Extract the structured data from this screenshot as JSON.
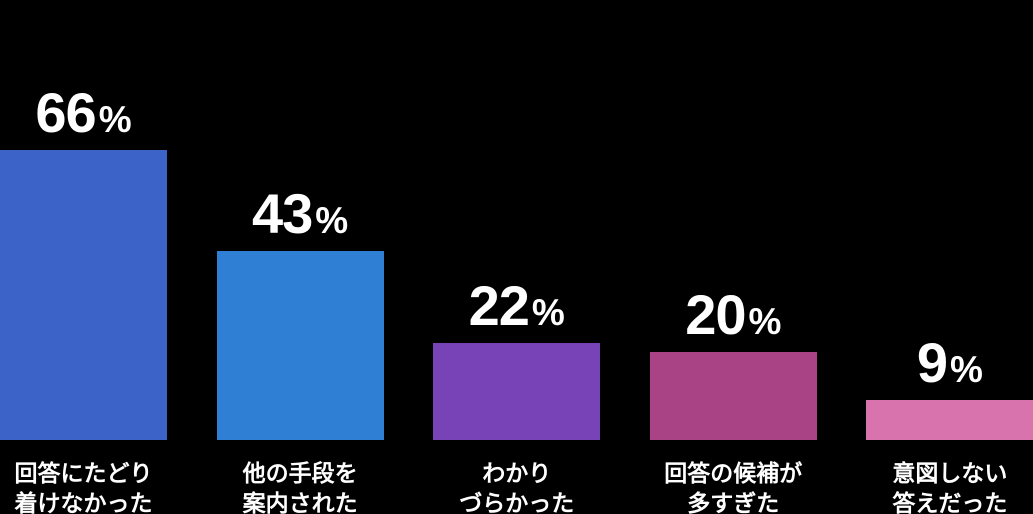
{
  "chart_data": {
    "type": "bar",
    "title": "",
    "unit": "%",
    "ylim": [
      0,
      100
    ],
    "grid": false,
    "legend": "none",
    "background_color": "#000000",
    "text_color": "#FFFFFF",
    "categories": [
      "回答にたどり着けなかった",
      "他の手段を案内された",
      "わかりづらかった",
      "回答の候補が多すぎた",
      "意図しない答えだった"
    ],
    "values": [
      66,
      43,
      22,
      20,
      9
    ],
    "items": [
      {
        "value": "66",
        "unit": "%",
        "color": "#3C63C7",
        "label_lines": [
          "回答にたどり",
          "着けなかった"
        ]
      },
      {
        "value": "43",
        "unit": "%",
        "color": "#2F7FD4",
        "label_lines": [
          "他の手段を",
          "案内された"
        ]
      },
      {
        "value": "22",
        "unit": "%",
        "color": "#7843B6",
        "label_lines": [
          "わかり",
          "づらかった"
        ]
      },
      {
        "value": "20",
        "unit": "%",
        "color": "#AA4386",
        "label_lines": [
          "回答の候補が",
          "多すぎた"
        ]
      },
      {
        "value": "9",
        "unit": "%",
        "color": "#D873AE",
        "label_lines": [
          "意図しない",
          "答えだった"
        ]
      }
    ]
  }
}
